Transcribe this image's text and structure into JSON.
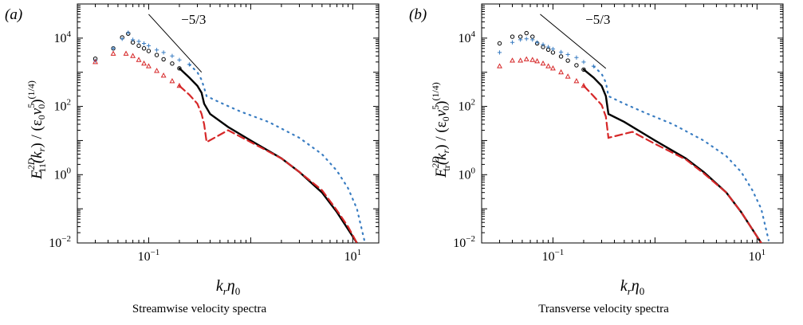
{
  "figure": {
    "captions": [
      "Streamwise velocity spectra",
      "Transverse velocity spectra"
    ]
  },
  "colors": {
    "black_series": "#000000",
    "blue_series": "#3a7dc2",
    "red_series": "#d62728",
    "slope_line": "#000000"
  },
  "chart_data": [
    {
      "type": "scatter",
      "panel_label": "(a)",
      "caption": "Streamwise velocity spectra",
      "xlabel_main": "k",
      "xlabel_sub1": "r",
      "xlabel_mid": "η",
      "xlabel_sub2": "0",
      "ylabel_main": "E",
      "ylabel_sup": "2D",
      "ylabel_sub": "11",
      "ylabel_rest": "(k",
      "ylabel_rest_sub": "r",
      "ylabel_den": ") / (ε",
      "ylabel_den_sub": "0",
      "ylabel_nu": "ν",
      "ylabel_nu_sup": "5",
      "ylabel_nu_sub": "0",
      "ylabel_close": ")",
      "ylabel_exp": "(1/4)",
      "xscale": "log",
      "yscale": "log",
      "xlim": [
        0.02,
        18
      ],
      "ylim": [
        0.01,
        100000
      ],
      "xticks": [
        {
          "v": 0.1,
          "b": "10",
          "e": "−1"
        },
        {
          "v": 10,
          "b": "10",
          "e": "1"
        }
      ],
      "yticks": [
        {
          "v": 0.01,
          "b": "10",
          "e": "−2"
        },
        {
          "v": 1,
          "b": "10",
          "e": "0"
        },
        {
          "v": 100,
          "b": "10",
          "e": "2"
        },
        {
          "v": 10000,
          "b": "10",
          "e": "4"
        }
      ],
      "slope_label": "−5/3",
      "slope_line": {
        "x": [
          0.1,
          0.33
        ],
        "y": [
          50000,
          1000
        ]
      },
      "series": [
        {
          "marker": "circle",
          "color_key": "black_series",
          "points": [
            [
              0.03,
              2500
            ],
            [
              0.045,
              5000
            ],
            [
              0.055,
              10500
            ],
            [
              0.063,
              13500
            ],
            [
              0.07,
              7500
            ],
            [
              0.08,
              6000
            ],
            [
              0.09,
              5000
            ],
            [
              0.1,
              4200
            ],
            [
              0.12,
              3200
            ],
            [
              0.14,
              2400
            ],
            [
              0.17,
              1800
            ],
            [
              0.2,
              1300
            ]
          ],
          "curve": [
            [
              0.2,
              1300
            ],
            [
              0.25,
              700
            ],
            [
              0.3,
              400
            ],
            [
              0.33,
              250
            ],
            [
              0.35,
              120
            ],
            [
              0.4,
              60
            ],
            [
              0.6,
              25
            ],
            [
              1,
              10
            ],
            [
              2,
              3
            ],
            [
              3,
              1.2
            ],
            [
              5,
              0.3
            ],
            [
              7,
              0.08
            ],
            [
              9,
              0.025
            ],
            [
              11,
              0.01
            ]
          ]
        },
        {
          "marker": "plus",
          "color_key": "blue_series",
          "points": [
            [
              0.03,
              2200
            ],
            [
              0.045,
              5000
            ],
            [
              0.055,
              9500
            ],
            [
              0.063,
              14500
            ],
            [
              0.07,
              9000
            ],
            [
              0.08,
              8000
            ],
            [
              0.09,
              7000
            ],
            [
              0.1,
              6000
            ],
            [
              0.12,
              4500
            ],
            [
              0.14,
              3800
            ],
            [
              0.17,
              3000
            ],
            [
              0.2,
              2300
            ],
            [
              0.25,
              1700
            ]
          ],
          "curve": [
            [
              0.25,
              1700
            ],
            [
              0.3,
              1000
            ],
            [
              0.33,
              600
            ],
            [
              0.35,
              350
            ],
            [
              0.37,
              200
            ],
            [
              0.5,
              130
            ],
            [
              0.8,
              70
            ],
            [
              1.5,
              35
            ],
            [
              3,
              12
            ],
            [
              5,
              4
            ],
            [
              7,
              1.3
            ],
            [
              9,
              0.4
            ],
            [
              11,
              0.1
            ],
            [
              13,
              0.012
            ]
          ]
        },
        {
          "marker": "triangle",
          "color_key": "red_series",
          "points": [
            [
              0.03,
              2000
            ],
            [
              0.045,
              3500
            ],
            [
              0.06,
              3500
            ],
            [
              0.07,
              3000
            ],
            [
              0.08,
              2300
            ],
            [
              0.09,
              1800
            ],
            [
              0.1,
              1500
            ],
            [
              0.12,
              1100
            ],
            [
              0.14,
              800
            ],
            [
              0.17,
              550
            ],
            [
              0.2,
              400
            ]
          ],
          "curve": [
            [
              0.2,
              400
            ],
            [
              0.25,
              220
            ],
            [
              0.3,
              120
            ],
            [
              0.33,
              60
            ],
            [
              0.35,
              30
            ],
            [
              0.37,
              9
            ],
            [
              0.6,
              20
            ],
            [
              1,
              9
            ],
            [
              2,
              3
            ],
            [
              3,
              1.2
            ],
            [
              5,
              0.35
            ],
            [
              7,
              0.09
            ],
            [
              9,
              0.03
            ],
            [
              11,
              0.01
            ]
          ]
        }
      ]
    },
    {
      "type": "scatter",
      "panel_label": "(b)",
      "caption": "Transverse velocity spectra",
      "xlabel_main": "k",
      "xlabel_sub1": "r",
      "xlabel_mid": "η",
      "xlabel_sub2": "0",
      "ylabel_main": "E",
      "ylabel_sup": "2D",
      "ylabel_sub": "tr",
      "ylabel_rest": "(k",
      "ylabel_rest_sub": "r",
      "ylabel_den": ") / (ε",
      "ylabel_den_sub": "0",
      "ylabel_nu": "ν",
      "ylabel_nu_sup": "5",
      "ylabel_nu_sub": "0",
      "ylabel_close": ")",
      "ylabel_exp": "(1/4)",
      "xscale": "log",
      "yscale": "log",
      "xlim": [
        0.02,
        18
      ],
      "ylim": [
        0.01,
        100000
      ],
      "xticks": [
        {
          "v": 0.1,
          "b": "10",
          "e": "−1"
        },
        {
          "v": 10,
          "b": "10",
          "e": "1"
        }
      ],
      "yticks": [
        {
          "v": 0.01,
          "b": "10",
          "e": "−2"
        },
        {
          "v": 1,
          "b": "10",
          "e": "0"
        },
        {
          "v": 100,
          "b": "10",
          "e": "2"
        },
        {
          "v": 10000,
          "b": "10",
          "e": "4"
        }
      ],
      "slope_label": "−5/3",
      "slope_line": {
        "x": [
          0.075,
          0.33
        ],
        "y": [
          50000,
          1300
        ]
      },
      "series": [
        {
          "marker": "circle",
          "color_key": "black_series",
          "points": [
            [
              0.03,
              7000
            ],
            [
              0.04,
              11000
            ],
            [
              0.048,
              11000
            ],
            [
              0.055,
              14000
            ],
            [
              0.063,
              11000
            ],
            [
              0.07,
              7000
            ],
            [
              0.08,
              5500
            ],
            [
              0.09,
              4600
            ],
            [
              0.1,
              3800
            ],
            [
              0.12,
              2900
            ],
            [
              0.14,
              2200
            ],
            [
              0.17,
              1600
            ],
            [
              0.2,
              1200
            ]
          ],
          "curve": [
            [
              0.2,
              1200
            ],
            [
              0.25,
              700
            ],
            [
              0.3,
              400
            ],
            [
              0.33,
              200
            ],
            [
              0.35,
              60
            ],
            [
              0.5,
              35
            ],
            [
              1,
              10
            ],
            [
              2,
              3
            ],
            [
              3,
              1.2
            ],
            [
              5,
              0.3
            ],
            [
              7,
              0.08
            ],
            [
              9,
              0.025
            ],
            [
              11,
              0.01
            ]
          ]
        },
        {
          "marker": "plus",
          "color_key": "blue_series",
          "points": [
            [
              0.03,
              3800
            ],
            [
              0.04,
              7500
            ],
            [
              0.048,
              9000
            ],
            [
              0.055,
              9500
            ],
            [
              0.063,
              9000
            ],
            [
              0.07,
              7500
            ],
            [
              0.08,
              6500
            ],
            [
              0.09,
              5500
            ],
            [
              0.1,
              4800
            ],
            [
              0.12,
              3900
            ],
            [
              0.14,
              3300
            ],
            [
              0.17,
              2700
            ],
            [
              0.2,
              2000
            ],
            [
              0.25,
              1500
            ]
          ],
          "curve": [
            [
              0.25,
              1500
            ],
            [
              0.3,
              900
            ],
            [
              0.33,
              500
            ],
            [
              0.35,
              200
            ],
            [
              0.5,
              120
            ],
            [
              0.8,
              65
            ],
            [
              1.5,
              30
            ],
            [
              3,
              10
            ],
            [
              5,
              3.5
            ],
            [
              7,
              1.2
            ],
            [
              9,
              0.35
            ],
            [
              11,
              0.1
            ],
            [
              13,
              0.012
            ]
          ]
        },
        {
          "marker": "triangle",
          "color_key": "red_series",
          "points": [
            [
              0.03,
              1500
            ],
            [
              0.04,
              2200
            ],
            [
              0.048,
              2200
            ],
            [
              0.055,
              2400
            ],
            [
              0.063,
              2300
            ],
            [
              0.07,
              2100
            ],
            [
              0.08,
              1800
            ],
            [
              0.09,
              1500
            ],
            [
              0.1,
              1300
            ],
            [
              0.12,
              1000
            ],
            [
              0.14,
              750
            ],
            [
              0.17,
              550
            ],
            [
              0.2,
              400
            ]
          ],
          "curve": [
            [
              0.2,
              400
            ],
            [
              0.25,
              200
            ],
            [
              0.3,
              110
            ],
            [
              0.33,
              50
            ],
            [
              0.35,
              12
            ],
            [
              0.6,
              18
            ],
            [
              1,
              8
            ],
            [
              2,
              2.8
            ],
            [
              3,
              1.1
            ],
            [
              5,
              0.3
            ],
            [
              7,
              0.08
            ],
            [
              9,
              0.025
            ],
            [
              11,
              0.01
            ]
          ]
        }
      ]
    }
  ]
}
